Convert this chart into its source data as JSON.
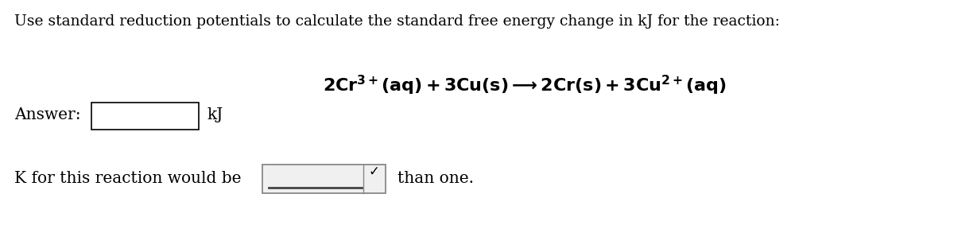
{
  "title_line": "Use standard reduction potentials to calculate the standard free energy change in kJ for the reaction:",
  "answer_label": "Answer:",
  "kj_label": "kJ",
  "k_line_part1": "K for this reaction would be",
  "k_line_part2": "than one.",
  "bg_color": "#ffffff",
  "text_color": "#000000",
  "box_edge_color": "#000000",
  "dropdown_edge_color": "#888888",
  "dropdown_face_color": "#f0f0f0",
  "title_fontsize": 13.5,
  "body_fontsize": 14.5,
  "reaction_fontsize": 16,
  "fig_width": 12.0,
  "fig_height": 2.83,
  "dpi": 100
}
